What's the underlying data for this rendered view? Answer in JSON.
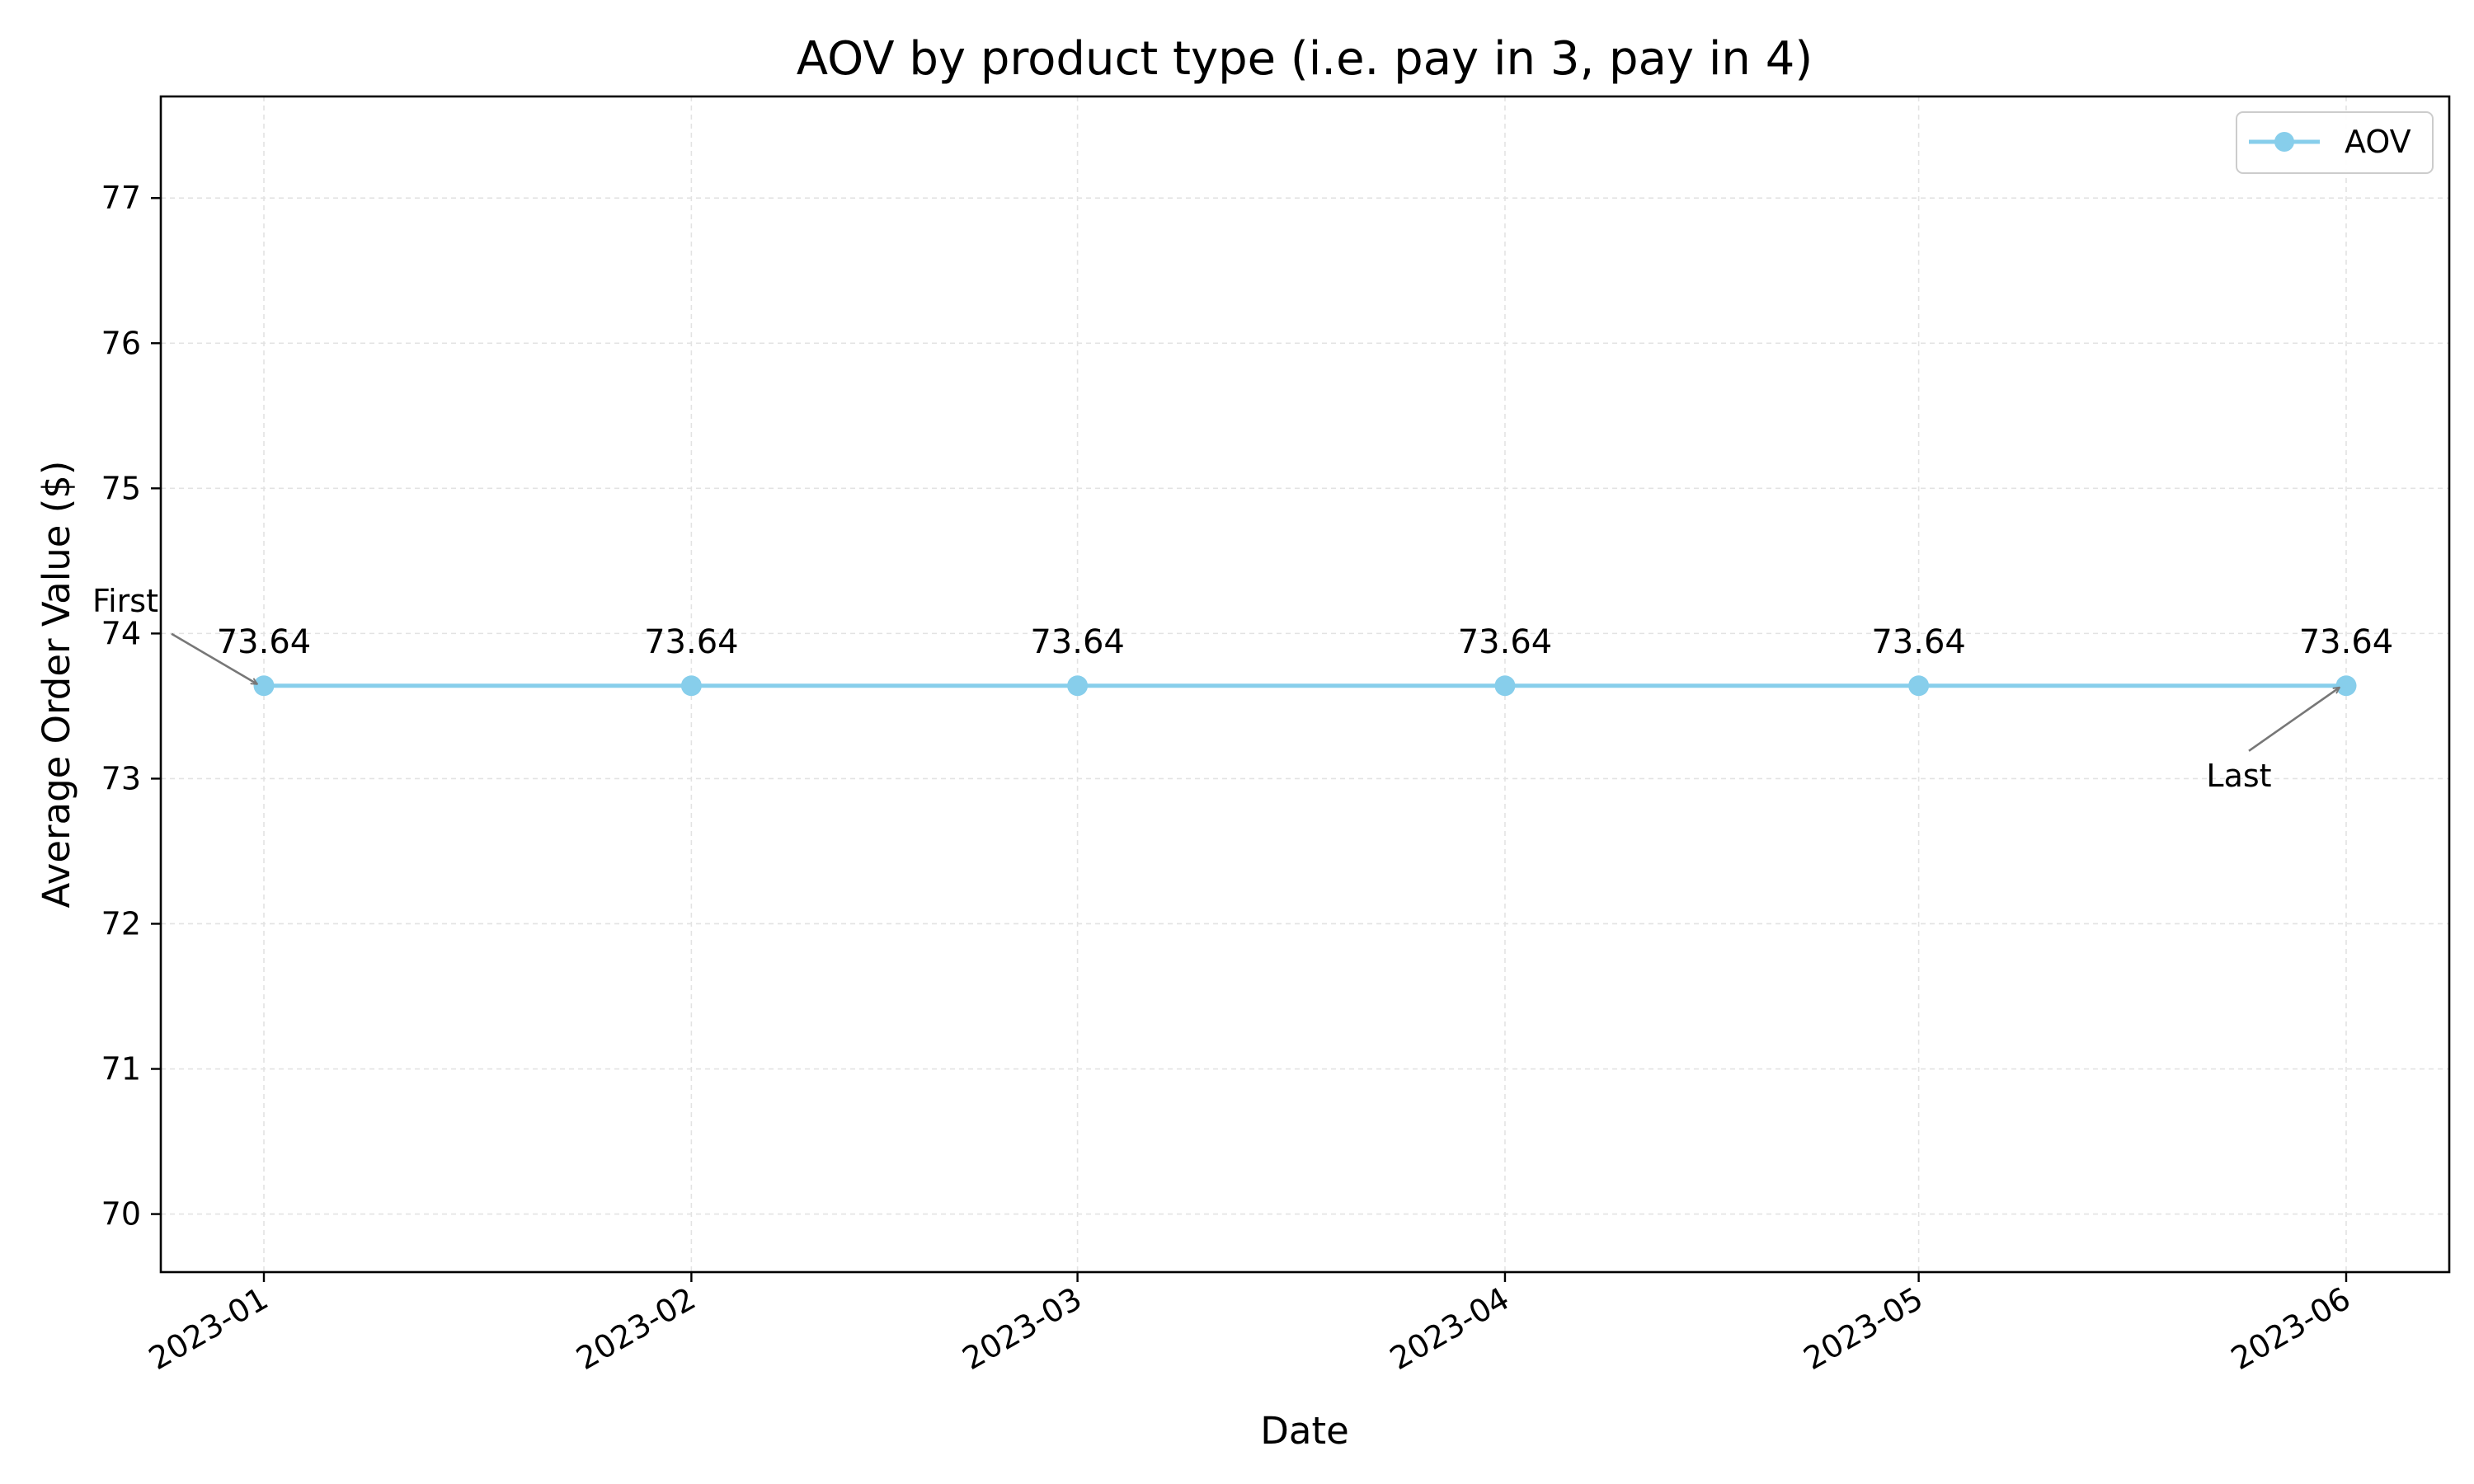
{
  "chart_data": {
    "type": "line",
    "title": "AOV by product type (i.e. pay in 3, pay in 4)",
    "xlabel": "Date",
    "ylabel": "Average Order Value ($)",
    "x": [
      "2023-01-01",
      "2023-02-01",
      "2023-03-01",
      "2023-04-01",
      "2023-05-01",
      "2023-06-01"
    ],
    "x_tick_labels": [
      "2023-01",
      "2023-02",
      "2023-03",
      "2023-04",
      "2023-05",
      "2023-06"
    ],
    "y_ticks": [
      "70",
      "71",
      "72",
      "73",
      "74",
      "75",
      "76",
      "77"
    ],
    "ylim": [
      69.6,
      77.7
    ],
    "series": [
      {
        "name": "AOV",
        "values": [
          73.64,
          73.64,
          73.64,
          73.64,
          73.64,
          73.64
        ],
        "data_labels": [
          "73.64",
          "73.64",
          "73.64",
          "73.64",
          "73.64",
          "73.64"
        ],
        "color": "#87ceeb",
        "marker": "circle"
      }
    ],
    "annotations": [
      {
        "text": "First",
        "point_index": 0
      },
      {
        "text": "Last",
        "point_index": 5
      }
    ],
    "annotation_color": "#777777",
    "legend": {
      "location": "top-right",
      "entries": [
        "AOV"
      ]
    },
    "grid": true
  }
}
